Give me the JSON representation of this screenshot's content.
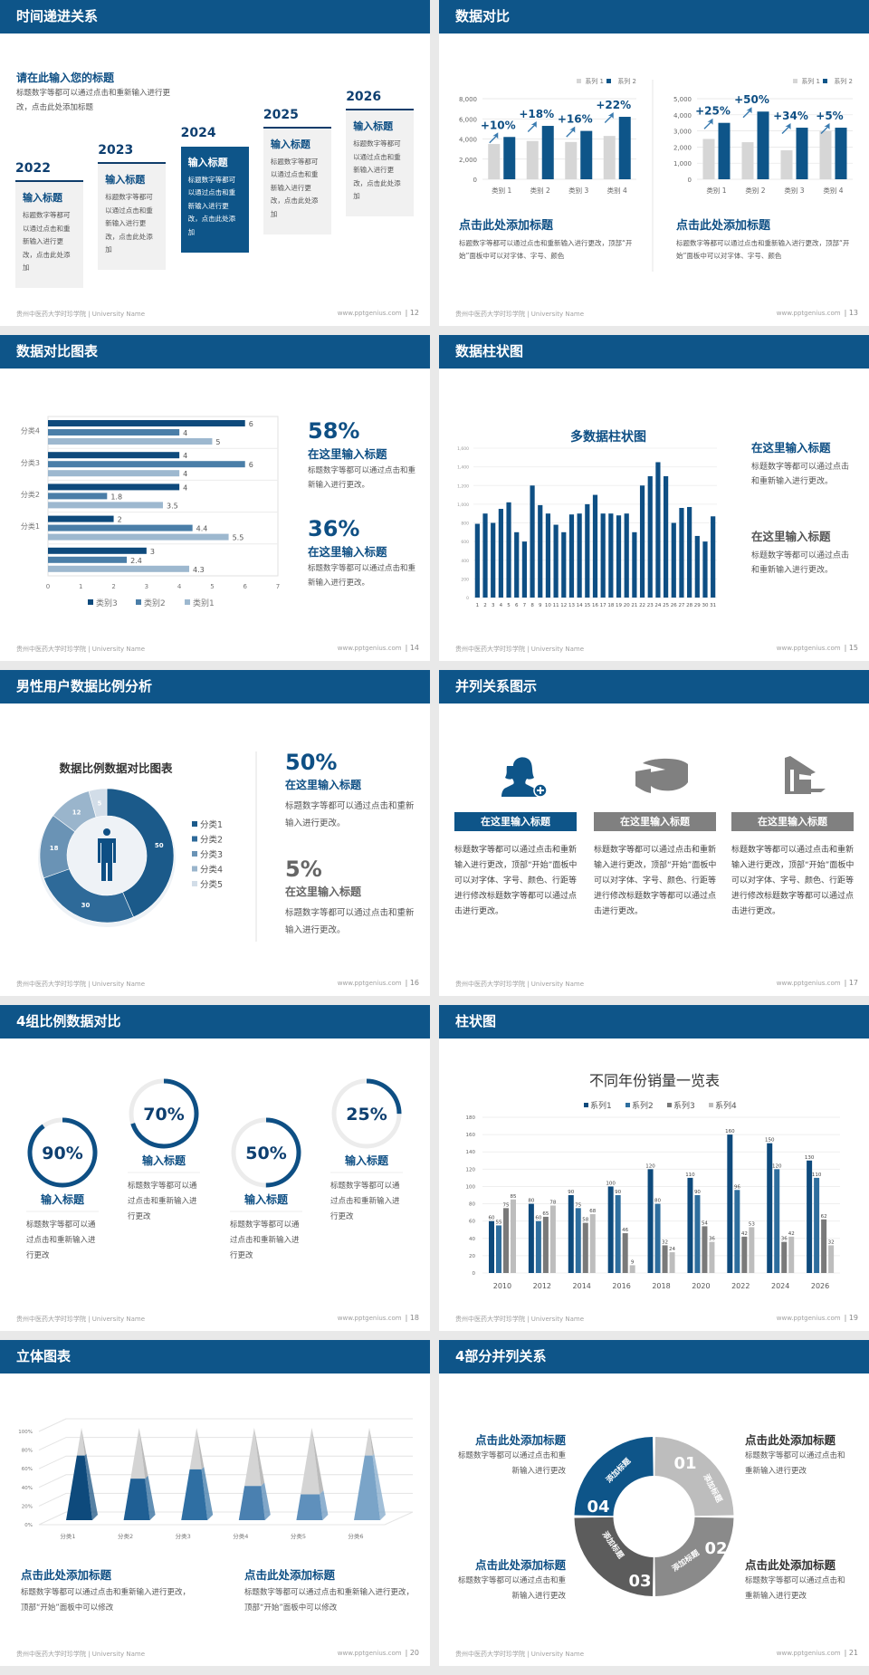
{
  "footer": {
    "org": "贵州中医药大学时珍学院 | University Name",
    "site": "www.pptgenius.com"
  },
  "colors": {
    "header": "#0e5589",
    "accent": "#0e4f84",
    "gray": "#8a8a8a",
    "light_gray": "#d6d6d6"
  },
  "slides": [
    {
      "page": "| 12",
      "title": "时间递进关系",
      "heading": "请在此输入您的标题",
      "desc": "标题数字等都可以通过点击和重新输入进行更改，点击此处添加标题",
      "steps": [
        {
          "year": "2022",
          "title": "输入标题",
          "text": "标题数字等都可以通过点击和重新输入进行更改，点击此处添加"
        },
        {
          "year": "2023",
          "title": "输入标题",
          "text": "标题数字等都可以通过点击和重新输入进行更改，点击此处添加"
        },
        {
          "year": "2024",
          "title": "输入标题",
          "text": "标题数字等都可以通过点击和重新输入进行更改，点击此处添加",
          "highlighted": true
        },
        {
          "year": "2025",
          "title": "输入标题",
          "text": "标题数字等都可以通过点击和重新输入进行更改，点击此处添加"
        },
        {
          "year": "2026",
          "title": "输入标题",
          "text": "标题数字等都可以通过点击和重新输入进行更改，点击此处添加"
        }
      ]
    },
    {
      "page": "| 13",
      "title": "数据对比",
      "captions": [
        {
          "heading": "点击此处添加标题",
          "text": "标题数字等都可以通过点击和重新输入进行更改，顶部“开始”面板中可以对字体、字号、颜色"
        },
        {
          "heading": "点击此处添加标题",
          "text": "标题数字等都可以通过点击和重新输入进行更改，顶部“开始”面板中可以对字体、字号、颜色"
        }
      ]
    },
    {
      "page": "| 14",
      "title": "数据对比图表",
      "stats": [
        {
          "pct": "58%",
          "heading": "在这里输入标题",
          "text": "标题数字等都可以通过点击和重新输入进行更改。"
        },
        {
          "pct": "36%",
          "heading": "在这里输入标题",
          "text": "标题数字等都可以通过点击和重新输入进行更改。"
        }
      ]
    },
    {
      "page": "| 15",
      "title": "数据柱状图",
      "blocks": [
        {
          "heading": "在这里输入标题",
          "text": "标题数字等都可以通过点击和重新输入进行更改。"
        },
        {
          "heading": "在这里输入标题",
          "text": "标题数字等都可以通过点击和重新输入进行更改。"
        }
      ]
    },
    {
      "page": "| 16",
      "title": "男性用户数据比例分析",
      "stats": [
        {
          "pct": "50%",
          "heading": "在这里输入标题",
          "text": "标题数字等都可以通过点击和重新输入进行更改。"
        },
        {
          "pct": "5%",
          "heading": "在这里输入标题",
          "text": "标题数字等都可以通过点击和重新输入进行更改。"
        }
      ]
    },
    {
      "page": "| 17",
      "title": "并列关系图示",
      "items": [
        {
          "icon": "user-add-icon",
          "label": "在这里输入标题",
          "text": "标题数字等都可以通过点击和重新输入进行更改，顶部“开始”面板中可以对字体、字号、颜色、行距等进行修改标题数字等都可以通过点击进行更改。",
          "color": "#0e5589"
        },
        {
          "icon": "pie-chart-icon",
          "label": "在这里输入标题",
          "text": "标题数字等都可以通过点击和重新输入进行更改，顶部“开始”面板中可以对字体、字号、颜色、行距等进行修改标题数字等都可以通过点击进行更改。",
          "color": "#808080"
        },
        {
          "icon": "building-icon",
          "label": "在这里输入标题",
          "text": "标题数字等都可以通过点击和重新输入进行更改，顶部“开始”面板中可以对字体、字号、颜色、行距等进行修改标题数字等都可以通过点击进行更改。",
          "color": "#808080"
        }
      ]
    },
    {
      "page": "| 18",
      "title": "4组比例数据对比",
      "items": [
        {
          "value": 90,
          "pct": "90%",
          "heading": "输入标题",
          "text": "标题数字等都可以通过点击和重新输入进行更改"
        },
        {
          "value": 70,
          "pct": "70%",
          "heading": "输入标题",
          "text": "标题数字等都可以通过点击和重新输入进行更改"
        },
        {
          "value": 50,
          "pct": "50%",
          "heading": "输入标题",
          "text": "标题数字等都可以通过点击和重新输入进行更改"
        },
        {
          "value": 25,
          "pct": "25%",
          "heading": "输入标题",
          "text": "标题数字等都可以通过点击和重新输入进行更改"
        }
      ]
    },
    {
      "page": "| 19",
      "title": "柱状图"
    },
    {
      "page": "| 20",
      "title": "立体图表",
      "captions": [
        {
          "heading": "点击此处添加标题",
          "text": "标题数字等都可以通过点击和重新输入进行更改，顶部“开始”面板中可以修改"
        },
        {
          "heading": "点击此处添加标题",
          "text": "标题数字等都可以通过点击和重新输入进行更改，顶部“开始”面板中可以修改"
        }
      ]
    },
    {
      "page": "| 21",
      "title": "4部分并列关系",
      "segments": [
        {
          "num": "01",
          "label": "添加标题",
          "color": "#bdbdbd"
        },
        {
          "num": "02",
          "label": "添加标题",
          "color": "#8a8a8a"
        },
        {
          "num": "03",
          "label": "添加标题",
          "color": "#5c5c5c"
        },
        {
          "num": "04",
          "label": "添加标题",
          "color": "#0e5589"
        }
      ],
      "blocks": [
        {
          "heading": "点击此处添加标题",
          "text": "标题数字等都可以通过点击和重新输入进行更改"
        },
        {
          "heading": "点击此处添加标题",
          "text": "标题数字等都可以通过点击和重新输入进行更改"
        },
        {
          "heading": "点击此处添加标题",
          "text": "标题数字等都可以通过点击和重新输入进行更改"
        },
        {
          "heading": "点击此处添加标题",
          "text": "标题数字等都可以通过点击和重新输入进行更改"
        }
      ]
    }
  ],
  "chart_data": [
    {
      "type": "bar",
      "categories": [
        "类别 1",
        "类别 2",
        "类别 3",
        "类别 4"
      ],
      "ylim": [
        0,
        8000
      ],
      "yticks": [
        "0",
        "2,000",
        "4,000",
        "6,000",
        "8,000"
      ],
      "series": [
        {
          "name": "系列 1",
          "values": [
            3500,
            3800,
            3700,
            4300
          ],
          "color": "#d6d6d6"
        },
        {
          "name": "系列 2",
          "values": [
            4200,
            5300,
            4800,
            6200
          ],
          "color": "#0e5589"
        }
      ],
      "annotations": [
        "+10%",
        "+18%",
        "+16%",
        "+22%"
      ],
      "legend": "top-right",
      "grid": true
    },
    {
      "type": "bar",
      "categories": [
        "类别 1",
        "类别 2",
        "类别 3",
        "类别 4"
      ],
      "ylim": [
        0,
        5000
      ],
      "yticks": [
        "0",
        "1,000",
        "2,000",
        "3,000",
        "4,000",
        "5,000"
      ],
      "series": [
        {
          "name": "系列 1",
          "values": [
            2500,
            2300,
            1800,
            3000
          ],
          "color": "#d6d6d6"
        },
        {
          "name": "系列 2",
          "values": [
            3500,
            4200,
            3200,
            3200
          ],
          "color": "#0e5589"
        }
      ],
      "annotations": [
        "+25%",
        "+50%",
        "+34%",
        "+5%"
      ],
      "legend": "top-right",
      "grid": true
    },
    {
      "type": "bar",
      "orientation": "horizontal",
      "categories": [
        "分类4",
        "分类3",
        "分类2",
        "分类1",
        ""
      ],
      "xlim": [
        0,
        7
      ],
      "xticks": [
        "0",
        "1",
        "2",
        "3",
        "4",
        "5",
        "6",
        "7"
      ],
      "series": [
        {
          "name": "类别3",
          "values": [
            6,
            4,
            4,
            2,
            3
          ],
          "labels": [
            "6",
            "4",
            "4",
            "2",
            "3"
          ],
          "color": "#0e4a7c"
        },
        {
          "name": "类别2",
          "values": [
            4,
            6,
            1.8,
            4.4,
            2.4
          ],
          "labels": [
            "4",
            "6",
            "1.8",
            "4.4",
            "2.4"
          ],
          "color": "#4a7ea8"
        },
        {
          "name": "类别1",
          "values": [
            5,
            4,
            3.5,
            5.5,
            4.3
          ],
          "labels": [
            "5",
            "4",
            "3.5",
            "5.5",
            "4.3"
          ],
          "color": "#9db8cf"
        }
      ],
      "legend": "bottom"
    },
    {
      "type": "bar",
      "title": "多数据柱状图",
      "ylim": [
        0,
        1600
      ],
      "yticks": [
        "0",
        "200",
        "400",
        "600",
        "800",
        "1,000",
        "1,200",
        "1,400",
        "1,600"
      ],
      "categories": [
        "1",
        "2",
        "3",
        "4",
        "5",
        "6",
        "7",
        "8",
        "9",
        "10",
        "11",
        "12",
        "13",
        "14",
        "15",
        "16",
        "17",
        "18",
        "19",
        "20",
        "21",
        "22",
        "23",
        "24",
        "25",
        "26",
        "27",
        "28",
        "29",
        "30",
        "31"
      ],
      "values": [
        790,
        900,
        800,
        950,
        1020,
        700,
        600,
        1200,
        990,
        900,
        780,
        700,
        890,
        900,
        1000,
        1100,
        900,
        900,
        880,
        900,
        700,
        1200,
        1300,
        1450,
        1300,
        800,
        960,
        970,
        660,
        600,
        870
      ],
      "color": "#0e4f84",
      "grid": true
    },
    {
      "type": "pie",
      "variant": "donut",
      "title": "数据比例数据对比图表",
      "categories": [
        "分类1",
        "分类2",
        "分类3",
        "分类4",
        "分类5"
      ],
      "values": [
        50,
        30,
        18,
        12,
        5
      ],
      "labels": [
        "50",
        "30",
        "18",
        "12",
        "5"
      ],
      "colors": [
        "#1b5a8a",
        "#2e6a99",
        "#6a93b5",
        "#9ab5cc",
        "#d2dde8"
      ],
      "legend": "right"
    },
    {
      "type": "bar",
      "title": "不同年份销量一览表",
      "ylim": [
        0,
        180
      ],
      "yticks": [
        "0",
        "20",
        "40",
        "60",
        "80",
        "100",
        "120",
        "140",
        "160",
        "180"
      ],
      "categories": [
        "2010",
        "2012",
        "2014",
        "2016",
        "2018",
        "2020",
        "2022",
        "2024",
        "2026"
      ],
      "series": [
        {
          "name": "系列1",
          "values": [
            60,
            80,
            90,
            100,
            120,
            110,
            160,
            150,
            130
          ],
          "color": "#0e4a7c"
        },
        {
          "name": "系列2",
          "values": [
            55,
            60,
            75,
            90,
            80,
            90,
            96,
            120,
            110
          ],
          "color": "#2e6e9e"
        },
        {
          "name": "系列3",
          "values": [
            75,
            65,
            58,
            46,
            32,
            54,
            42,
            36,
            62
          ],
          "color": "#7a7a7a"
        },
        {
          "name": "系列4",
          "values": [
            85,
            78,
            68,
            9,
            24,
            36,
            53,
            42,
            32
          ],
          "color": "#bdbdbd"
        }
      ],
      "legend": "top",
      "grid": true,
      "data_labels": true
    },
    {
      "type": "bar",
      "variant": "3d-pyramid",
      "ylim": [
        0,
        100
      ],
      "yticks": [
        "0%",
        "20%",
        "40%",
        "60%",
        "80%",
        "100%"
      ],
      "categories": [
        "分类1",
        "分类2",
        "分类3",
        "分类4",
        "分类5",
        "分类6"
      ],
      "values": [
        70,
        45,
        55,
        37,
        28,
        70
      ],
      "colors": [
        "#0e4a7c",
        "#1f5f94",
        "#2f6fa3",
        "#4a80b0",
        "#5f90bc",
        "#7aa4c8"
      ],
      "grid": true
    }
  ]
}
